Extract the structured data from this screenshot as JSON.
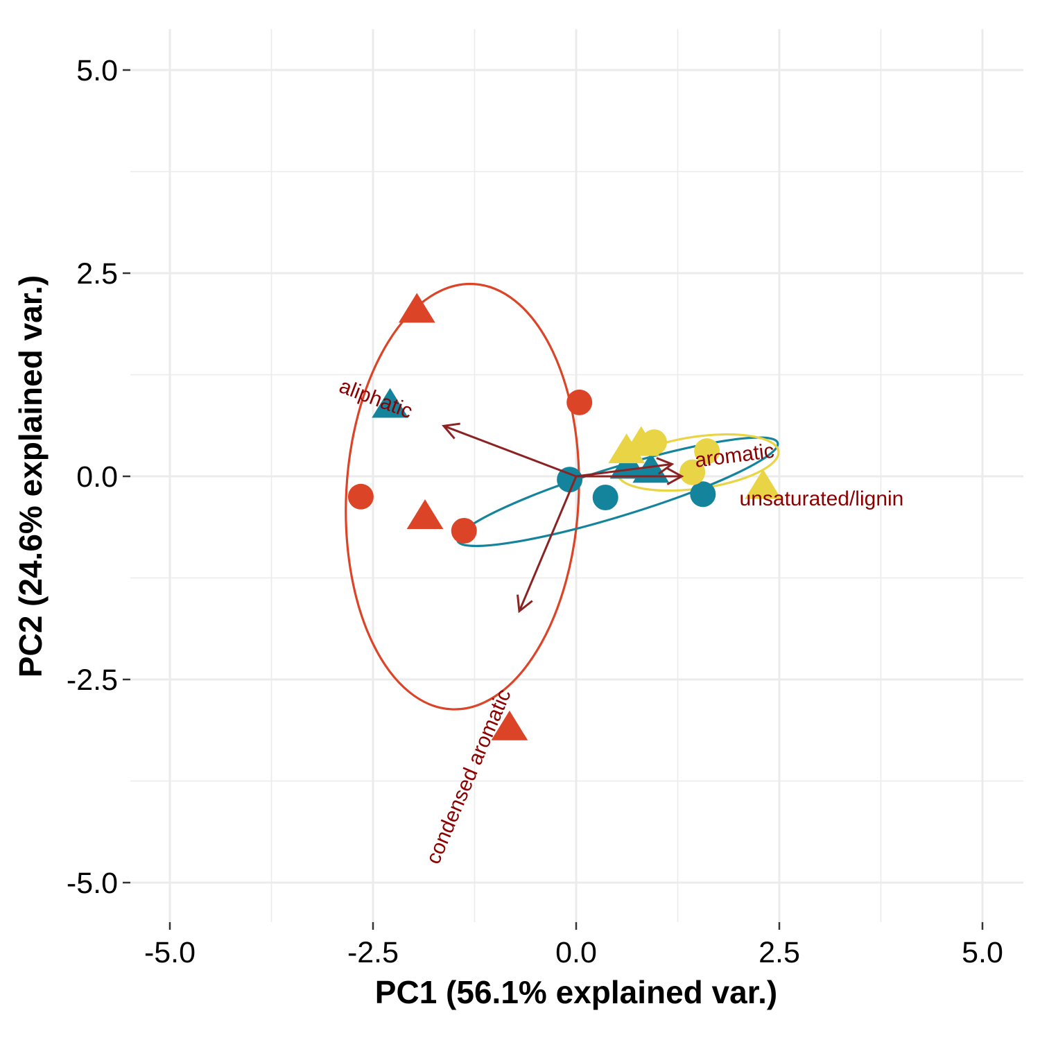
{
  "chart_data": {
    "type": "scatter",
    "title": "",
    "xlabel": "PC1 (56.1% explained var.)",
    "ylabel": "PC2 (24.6% explained var.)",
    "xlim": [
      -5.0,
      5.0
    ],
    "ylim": [
      -5.0,
      5.0
    ],
    "x_ticks": [
      -5.0,
      -2.5,
      0.0,
      2.5,
      5.0
    ],
    "x_tick_labels": [
      "-5.0",
      "-2.5",
      "0.0",
      "2.5",
      "5.0"
    ],
    "y_ticks": [
      -5.0,
      -2.5,
      0.0,
      2.5,
      5.0
    ],
    "y_tick_labels": [
      "-5.0",
      "-2.5",
      "0.0",
      "2.5",
      "5.0"
    ],
    "grid": true,
    "legend": "none",
    "colors": {
      "red": "#dc4427",
      "blue": "#14849c",
      "yellow": "#e8d444",
      "vector": "#8b2323",
      "vector_label": "#8b0000",
      "grid": "#ebebeb"
    },
    "groups": [
      {
        "color": "#dc4427",
        "points": [
          {
            "x": -1.96,
            "y": 2.06,
            "shape": "triangle"
          },
          {
            "x": 0.04,
            "y": 0.91,
            "shape": "circle"
          },
          {
            "x": -2.65,
            "y": -0.25,
            "shape": "circle"
          },
          {
            "x": -1.86,
            "y": -0.48,
            "shape": "triangle"
          },
          {
            "x": -1.38,
            "y": -0.67,
            "shape": "circle"
          },
          {
            "x": -0.82,
            "y": -3.08,
            "shape": "triangle"
          }
        ],
        "ellipse": {
          "cx": -1.4,
          "cy": -0.25,
          "rx": 1.43,
          "ry": 2.62,
          "angle": -3
        }
      },
      {
        "color": "#14849c",
        "points": [
          {
            "x": -2.29,
            "y": 0.89,
            "shape": "triangle"
          },
          {
            "x": 0.64,
            "y": 0.14,
            "shape": "triangle"
          },
          {
            "x": 0.92,
            "y": 0.09,
            "shape": "triangle"
          },
          {
            "x": -0.08,
            "y": -0.04,
            "shape": "circle"
          },
          {
            "x": 0.36,
            "y": -0.26,
            "shape": "circle"
          },
          {
            "x": 1.56,
            "y": -0.22,
            "shape": "circle"
          }
        ],
        "ellipse": {
          "cx": 0.51,
          "cy": -0.19,
          "rx": 2.06,
          "ry": 0.3,
          "angle": 17
        }
      },
      {
        "color": "#e8d444",
        "points": [
          {
            "x": 0.62,
            "y": 0.33,
            "shape": "triangle"
          },
          {
            "x": 0.8,
            "y": 0.42,
            "shape": "triangle"
          },
          {
            "x": 0.96,
            "y": 0.42,
            "shape": "circle"
          },
          {
            "x": 1.61,
            "y": 0.31,
            "shape": "circle"
          },
          {
            "x": 1.43,
            "y": 0.05,
            "shape": "circle"
          },
          {
            "x": 2.3,
            "y": -0.11,
            "shape": "triangle"
          }
        ],
        "ellipse": {
          "cx": 1.5,
          "cy": 0.17,
          "rx": 1.0,
          "ry": 0.32,
          "angle": 8
        }
      }
    ],
    "vectors": [
      {
        "label": "aliphatic",
        "x": -1.63,
        "y": 0.62,
        "label_x": -2.47,
        "label_y": 0.94
      },
      {
        "label": "aromatic",
        "x": 1.18,
        "y": 0.15,
        "label_x": 1.95,
        "label_y": 0.24
      },
      {
        "label": "unsaturated/lignin",
        "x": 1.3,
        "y": 0.0,
        "label_x": 3.02,
        "label_y": -0.29
      },
      {
        "label": "condensed aromatic",
        "x": -0.7,
        "y": -1.66,
        "label_x": -1.31,
        "label_y": -3.7
      }
    ]
  }
}
